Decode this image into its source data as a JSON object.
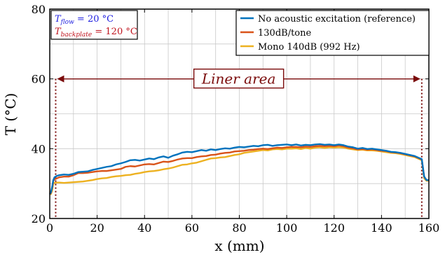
{
  "chart_data": {
    "type": "line",
    "xlabel": "x (mm)",
    "ylabel": "T (°C)",
    "xlim": [
      0,
      160
    ],
    "ylim": [
      20,
      80
    ],
    "xticks": [
      0,
      20,
      40,
      60,
      80,
      100,
      120,
      140,
      160
    ],
    "yticks": [
      20,
      40,
      60,
      80
    ],
    "grid": true,
    "legend_position": "top-right",
    "colors": {
      "reference": "#0072BD",
      "tone130": "#D95319",
      "mono140": "#EDB120",
      "accent": "#7a0a0a",
      "flow_text": "#1f1fe0",
      "backplate_text": "#c0141e"
    },
    "legend": [
      "No acoustic excitation (reference)",
      "130dB/tone",
      "Mono 140dB (992 Hz)"
    ],
    "info_box": {
      "flow_var": "T",
      "flow_sub": "flow",
      "flow_value": " = 20 °C",
      "backplate_var": "T",
      "backplate_sub": "backplate",
      "backplate_value": " = 120 °C"
    },
    "annotation": {
      "label": "Liner area",
      "x_start": 2.5,
      "x_end": 157,
      "y": 60
    },
    "series": [
      {
        "name": "No acoustic excitation (reference)",
        "x": [
          0,
          0.5,
          1,
          1.5,
          2,
          3,
          4,
          6,
          8,
          10,
          12,
          14,
          16,
          18,
          20,
          22,
          24,
          26,
          28,
          30,
          32,
          34,
          36,
          38,
          40,
          42,
          44,
          46,
          48,
          50,
          52,
          54,
          56,
          58,
          60,
          62,
          64,
          66,
          68,
          70,
          72,
          74,
          76,
          78,
          80,
          82,
          84,
          86,
          88,
          90,
          92,
          94,
          96,
          98,
          100,
          102,
          104,
          106,
          108,
          110,
          112,
          114,
          116,
          118,
          120,
          122,
          124,
          126,
          128,
          130,
          132,
          134,
          136,
          138,
          140,
          142,
          144,
          146,
          148,
          150,
          152,
          154,
          156,
          157,
          158,
          159,
          160
        ],
        "y": [
          27,
          27.5,
          29,
          31,
          31.8,
          32.2,
          32.4,
          32.6,
          32.5,
          32.8,
          33.3,
          33.4,
          33.5,
          33.9,
          34.2,
          34.5,
          34.8,
          35.0,
          35.5,
          35.8,
          36.2,
          36.7,
          36.8,
          36.6,
          36.9,
          37.2,
          37.0,
          37.5,
          37.8,
          37.4,
          38.0,
          38.4,
          38.9,
          39.1,
          39.0,
          39.3,
          39.6,
          39.4,
          39.8,
          39.6,
          39.9,
          40.1,
          40.0,
          40.3,
          40.5,
          40.4,
          40.6,
          40.8,
          40.7,
          41.0,
          41.1,
          40.8,
          41.0,
          41.1,
          41.2,
          41.0,
          41.2,
          40.9,
          41.1,
          41.0,
          41.2,
          41.3,
          41.1,
          41.2,
          41.0,
          41.2,
          41.0,
          40.6,
          40.4,
          40.0,
          40.2,
          39.9,
          40.0,
          39.8,
          39.6,
          39.4,
          39.1,
          39.0,
          38.8,
          38.5,
          38.2,
          37.9,
          37.3,
          37.0,
          32.0,
          31.0,
          31.0
        ]
      },
      {
        "name": "130dB/tone",
        "x": [
          0,
          0.5,
          1,
          1.5,
          2,
          3,
          4,
          6,
          8,
          10,
          12,
          14,
          16,
          18,
          20,
          22,
          24,
          26,
          28,
          30,
          32,
          34,
          36,
          38,
          40,
          42,
          44,
          46,
          48,
          50,
          52,
          54,
          56,
          58,
          60,
          62,
          64,
          66,
          68,
          70,
          72,
          74,
          76,
          78,
          80,
          82,
          84,
          86,
          88,
          90,
          92,
          94,
          96,
          98,
          100,
          102,
          104,
          106,
          108,
          110,
          112,
          114,
          116,
          118,
          120,
          122,
          124,
          126,
          128,
          130,
          132,
          134,
          136,
          138,
          140,
          142,
          144,
          146,
          148,
          150,
          152,
          154,
          156,
          157,
          158,
          159,
          160
        ],
        "y": [
          27,
          27.3,
          28.8,
          30.8,
          31.2,
          31.5,
          31.8,
          32.0,
          32.0,
          32.4,
          33.0,
          33.0,
          33.1,
          33.3,
          33.5,
          33.6,
          33.6,
          33.8,
          34.0,
          34.2,
          34.8,
          35.0,
          34.9,
          35.2,
          35.5,
          35.6,
          35.5,
          35.9,
          36.3,
          36.2,
          36.5,
          36.9,
          37.2,
          37.3,
          37.3,
          37.6,
          37.8,
          37.9,
          38.2,
          38.3,
          38.6,
          38.8,
          38.9,
          39.2,
          39.3,
          39.4,
          39.6,
          39.7,
          39.9,
          40.0,
          39.9,
          40.1,
          40.3,
          40.2,
          40.4,
          40.5,
          40.5,
          40.4,
          40.6,
          40.5,
          40.7,
          40.8,
          40.7,
          40.8,
          40.7,
          40.9,
          40.7,
          40.3,
          40.1,
          39.8,
          39.9,
          39.7,
          39.8,
          39.6,
          39.4,
          39.3,
          39.0,
          38.9,
          38.7,
          38.4,
          38.1,
          37.8,
          37.2,
          36.9,
          32.0,
          31.0,
          31.0
        ]
      },
      {
        "name": "Mono 140dB (992 Hz)",
        "x": [
          0,
          0.5,
          1,
          1.5,
          2,
          3,
          4,
          6,
          8,
          10,
          12,
          14,
          16,
          18,
          20,
          22,
          24,
          26,
          28,
          30,
          32,
          34,
          36,
          38,
          40,
          42,
          44,
          46,
          48,
          50,
          52,
          54,
          56,
          58,
          60,
          62,
          64,
          66,
          68,
          70,
          72,
          74,
          76,
          78,
          80,
          82,
          84,
          86,
          88,
          90,
          92,
          94,
          96,
          98,
          100,
          102,
          104,
          106,
          108,
          110,
          112,
          114,
          116,
          118,
          120,
          122,
          124,
          126,
          128,
          130,
          132,
          134,
          136,
          138,
          140,
          142,
          144,
          146,
          148,
          150,
          152,
          154,
          156,
          157,
          158,
          159,
          160
        ],
        "y": [
          27,
          27.0,
          28.0,
          30.0,
          30.2,
          30.3,
          30.3,
          30.2,
          30.3,
          30.4,
          30.5,
          30.6,
          30.8,
          31.0,
          31.3,
          31.5,
          31.6,
          31.9,
          32.1,
          32.2,
          32.4,
          32.5,
          32.8,
          33.0,
          33.3,
          33.5,
          33.6,
          33.8,
          34.1,
          34.3,
          34.6,
          35.0,
          35.4,
          35.5,
          35.8,
          36.0,
          36.4,
          36.8,
          37.2,
          37.3,
          37.5,
          37.6,
          37.9,
          38.2,
          38.4,
          38.8,
          39.0,
          39.2,
          39.4,
          39.6,
          39.5,
          39.8,
          39.9,
          39.8,
          40.0,
          40.0,
          40.1,
          39.9,
          40.2,
          40.0,
          40.3,
          40.4,
          40.2,
          40.4,
          40.3,
          40.4,
          40.3,
          40.0,
          39.8,
          39.6,
          39.7,
          39.5,
          39.5,
          39.4,
          39.2,
          39.0,
          38.8,
          38.7,
          38.5,
          38.2,
          37.9,
          37.6,
          37.0,
          36.7,
          31.5,
          30.8,
          30.8
        ]
      }
    ]
  }
}
